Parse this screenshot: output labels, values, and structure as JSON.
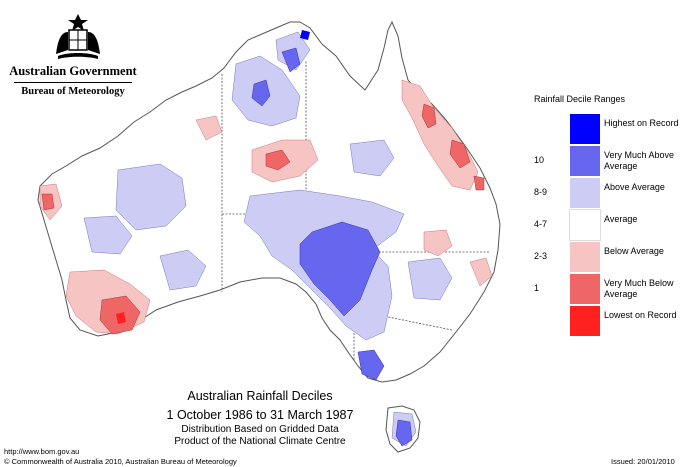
{
  "header": {
    "government": "Australian Government",
    "bureau": "Bureau of Meteorology"
  },
  "legend": {
    "title": "Rainfall Decile Ranges",
    "items": [
      {
        "range": "",
        "label": "Highest on Record",
        "color": "#0000ff"
      },
      {
        "range": "10",
        "label": "Very Much Above Average",
        "color": "#6666ee"
      },
      {
        "range": "8-9",
        "label": "Above Average",
        "color": "#ccccf5"
      },
      {
        "range": "4-7",
        "label": "Average",
        "color": "#ffffff"
      },
      {
        "range": "2-3",
        "label": "Below Average",
        "color": "#f7c4c4"
      },
      {
        "range": "1",
        "label": "Very Much Below Average",
        "color": "#ee6666"
      },
      {
        "range": "",
        "label": "Lowest on Record",
        "color": "#ff2020"
      }
    ]
  },
  "caption": {
    "title": "Australian Rainfall Deciles",
    "dates": "1 October 1986 to 31 March 1987",
    "line1": "Distribution Based on Gridded Data",
    "line2": "Product of the National Climate Centre"
  },
  "footer": {
    "url": "http://www.bom.gov.au",
    "copyright": "© Commonwealth of Australia 2010, Australian Bureau of Meteorology",
    "issued": "Issued: 20/01/2010"
  }
}
